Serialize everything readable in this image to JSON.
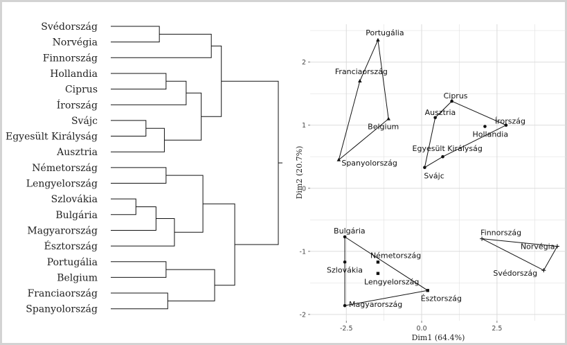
{
  "chart_data": [
    {
      "type": "dendrogram",
      "leaves": [
        "Svédország",
        "Norvégia",
        "Finnország",
        "Hollandia",
        "Ciprus",
        "Írország",
        "Svájc",
        "Egyesült Királyság",
        "Ausztria",
        "Németország",
        "Lengyelország",
        "Szlovákia",
        "Bulgária",
        "Magyarország",
        "Észtország",
        "Portugália",
        "Belgium",
        "Franciaország",
        "Spanyolország"
      ],
      "merges": [
        {
          "a": "Svédország",
          "b": "Norvégia",
          "h": 0.29
        },
        {
          "a": "Hollandia",
          "b": "Ciprus",
          "h": 0.33
        },
        {
          "a": "Svájc",
          "b": "Egyesült Királyság",
          "h": 0.21
        },
        {
          "a": "Szlovákia",
          "b": "Bulgária",
          "h": 0.15
        },
        {
          "a": "Portugália",
          "b": "Belgium",
          "h": 0.33
        },
        {
          "a": "Franciaország",
          "b": "Spanyolország",
          "h": 0.34
        },
        {
          "a": "Németország",
          "b": "Lengyelország",
          "h": 0.33
        },
        {
          "a": "S1",
          "b": "Finnország",
          "h": 0.6,
          "a_is_cluster": true
        },
        {
          "a": "H1",
          "b": "Írország",
          "h": 0.45,
          "a_is_cluster": true
        },
        {
          "a": "W1",
          "b": "Ausztria",
          "h": 0.32,
          "a_is_cluster": true
        },
        {
          "a": "H2",
          "b": "W2",
          "h": 0.54,
          "a_is_cluster": true,
          "b_is_cluster": true
        },
        {
          "a": "SB",
          "b": "Magyarország",
          "h": 0.27,
          "a_is_cluster": true
        },
        {
          "a": "SBM",
          "b": "Észtország",
          "h": 0.38,
          "a_is_cluster": true
        },
        {
          "a": "GL",
          "b": "SBME",
          "h": 0.55,
          "a_is_cluster": true,
          "b_is_cluster": true
        },
        {
          "a": "PB",
          "b": "FS",
          "h": 0.62,
          "a_is_cluster": true,
          "b_is_cluster": true
        },
        {
          "a": "S2",
          "b": "HW",
          "h": 0.66,
          "a_is_cluster": true,
          "b_is_cluster": true
        },
        {
          "a": "E",
          "b": "P",
          "h": 0.74,
          "a_is_cluster": true,
          "b_is_cluster": true
        },
        {
          "a": "N",
          "b": "EP",
          "h": 1.0,
          "a_is_cluster": true,
          "b_is_cluster": true
        }
      ]
    },
    {
      "type": "scatter",
      "xlabel": "Dim1 (64.4%)",
      "ylabel": "Dim2 (20.7%)",
      "xlim": [
        -3.7,
        4.8
      ],
      "ylim": [
        -2.1,
        2.6
      ],
      "xticks": [
        -2.5,
        0.0,
        2.5
      ],
      "yticks": [
        -2,
        -1,
        0,
        1,
        2
      ],
      "xtick_labels": [
        "-2.5",
        "0.0",
        "2.5"
      ],
      "ytick_labels": [
        "-2",
        "-1",
        "0",
        "1",
        "2"
      ],
      "grid": true,
      "points": [
        {
          "label": "Portugália",
          "x": -1.45,
          "y": 2.35,
          "marker": "triangle",
          "group": 1
        },
        {
          "label": "Franciaország",
          "x": -2.05,
          "y": 1.7,
          "marker": "triangle",
          "group": 1
        },
        {
          "label": "Belgium",
          "x": -1.1,
          "y": 1.1,
          "marker": "triangle",
          "group": 1
        },
        {
          "label": "Spanyolország",
          "x": -2.75,
          "y": 0.45,
          "marker": "triangle",
          "group": 1
        },
        {
          "label": "Ciprus",
          "x": 1.0,
          "y": 1.38,
          "marker": "dot",
          "group": 2
        },
        {
          "label": "Ausztria",
          "x": 0.45,
          "y": 1.12,
          "marker": "dot",
          "group": 2
        },
        {
          "label": "Írország",
          "x": 2.8,
          "y": 1.0,
          "marker": "dot",
          "group": 2
        },
        {
          "label": "Hollandia",
          "x": 2.1,
          "y": 0.98,
          "marker": "dot",
          "group": 2
        },
        {
          "label": "Egyesült Királyság",
          "x": 0.7,
          "y": 0.5,
          "marker": "dot",
          "group": 2
        },
        {
          "label": "Svájc",
          "x": 0.1,
          "y": 0.33,
          "marker": "dot",
          "group": 2
        },
        {
          "label": "Bulgária",
          "x": -2.55,
          "y": -0.77,
          "marker": "dot",
          "group": 3
        },
        {
          "label": "Szlovákia",
          "x": -2.55,
          "y": -1.17,
          "marker": "dot",
          "group": 3
        },
        {
          "label": "Németország",
          "x": -1.45,
          "y": -1.17,
          "marker": "square",
          "group": 3
        },
        {
          "label": "Lengyelország",
          "x": -1.45,
          "y": -1.35,
          "marker": "square",
          "group": 3
        },
        {
          "label": "Észtország",
          "x": 0.2,
          "y": -1.62,
          "marker": "square",
          "group": 3
        },
        {
          "label": "Magyarország",
          "x": -2.55,
          "y": -1.86,
          "marker": "dot",
          "group": 3
        },
        {
          "label": "Finnország",
          "x": 2.0,
          "y": -0.8,
          "marker": "cross",
          "group": 4
        },
        {
          "label": "Norvégia",
          "x": 4.5,
          "y": -0.92,
          "marker": "cross",
          "group": 4
        },
        {
          "label": "Svédország",
          "x": 4.05,
          "y": -1.3,
          "marker": "cross",
          "group": 4
        }
      ],
      "hulls": [
        [
          "Portugália",
          "Franciaország",
          "Spanyolország",
          "Belgium"
        ],
        [
          "Ciprus",
          "Írország",
          "Egyesült Királyság",
          "Svájc",
          "Ausztria"
        ],
        [
          "Bulgária",
          "Észtország",
          "Magyarország"
        ],
        [
          "Finnország",
          "Norvégia",
          "Svédország"
        ]
      ]
    }
  ]
}
